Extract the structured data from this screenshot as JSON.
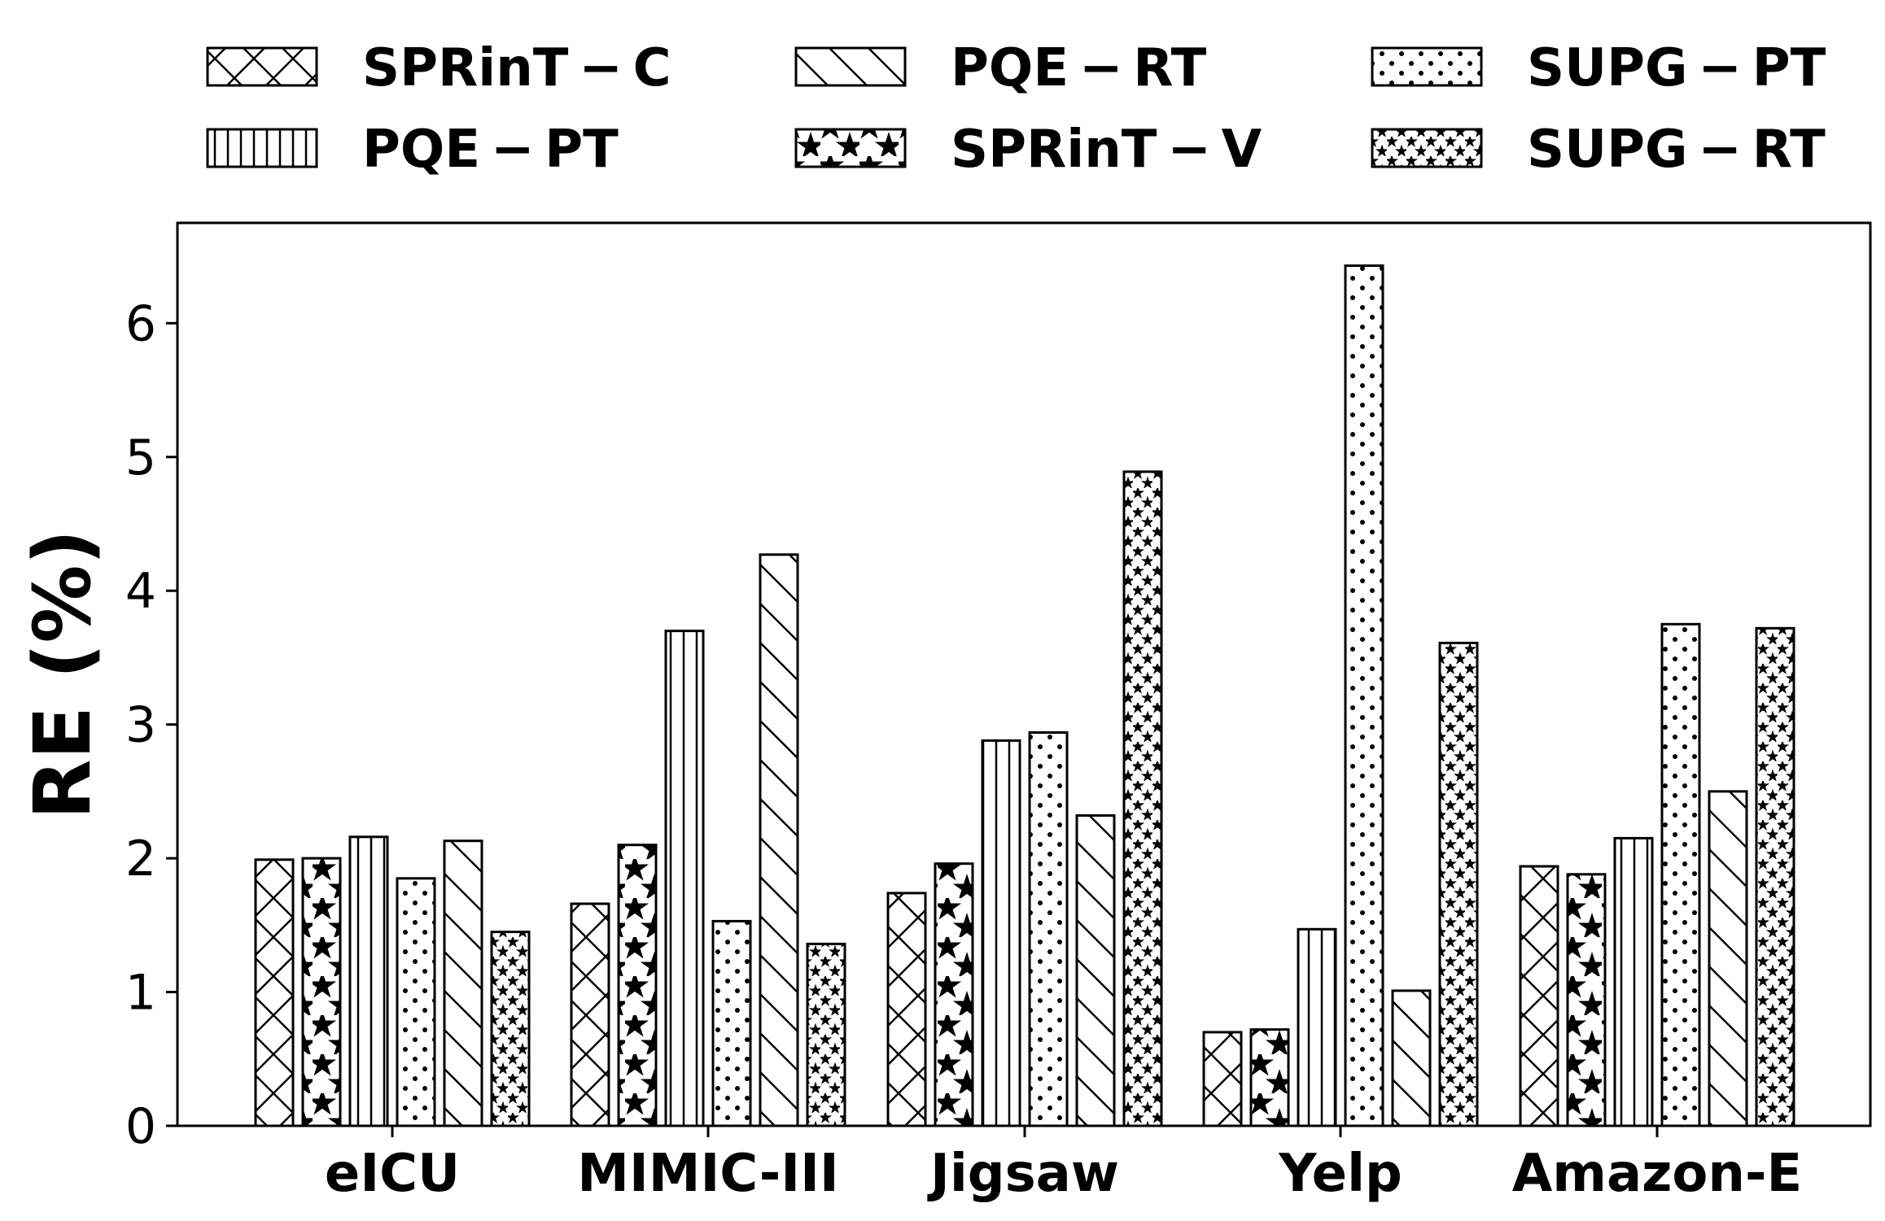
{
  "chart_data": {
    "type": "bar",
    "title": "",
    "xlabel": "",
    "ylabel": "RE (%)",
    "ylim": [
      0,
      6.75
    ],
    "yticks": [
      "0",
      "1",
      "2",
      "3",
      "4",
      "5",
      "6"
    ],
    "grid": false,
    "legend_position": "top",
    "categories": [
      "eICU",
      "MIMIC-III",
      "Jigsaw",
      "Yelp",
      "Amazon-E"
    ],
    "series": [
      {
        "name": "SPRinT − C",
        "pattern": "crosshatch",
        "values": [
          1.99,
          1.66,
          1.74,
          0.7,
          1.94
        ]
      },
      {
        "name": "SPRinT − V",
        "pattern": "large-stars",
        "values": [
          2.0,
          2.1,
          1.96,
          0.72,
          1.88
        ]
      },
      {
        "name": "PQE − PT",
        "pattern": "vertical-lines",
        "values": [
          2.16,
          3.7,
          2.88,
          1.47,
          2.15
        ]
      },
      {
        "name": "SUPG − PT",
        "pattern": "dots",
        "values": [
          1.85,
          1.53,
          2.94,
          6.43,
          3.75
        ]
      },
      {
        "name": "PQE − RT",
        "pattern": "diagonal-lines",
        "values": [
          2.13,
          4.27,
          2.32,
          1.01,
          2.5
        ]
      },
      {
        "name": "SUPG − RT",
        "pattern": "dense-stars",
        "values": [
          1.45,
          1.36,
          4.89,
          3.61,
          3.72
        ]
      }
    ],
    "legend_order": [
      0,
      2,
      4,
      1,
      3,
      5
    ]
  },
  "colors": {
    "stroke": "#000000",
    "fill": "#ffffff"
  }
}
